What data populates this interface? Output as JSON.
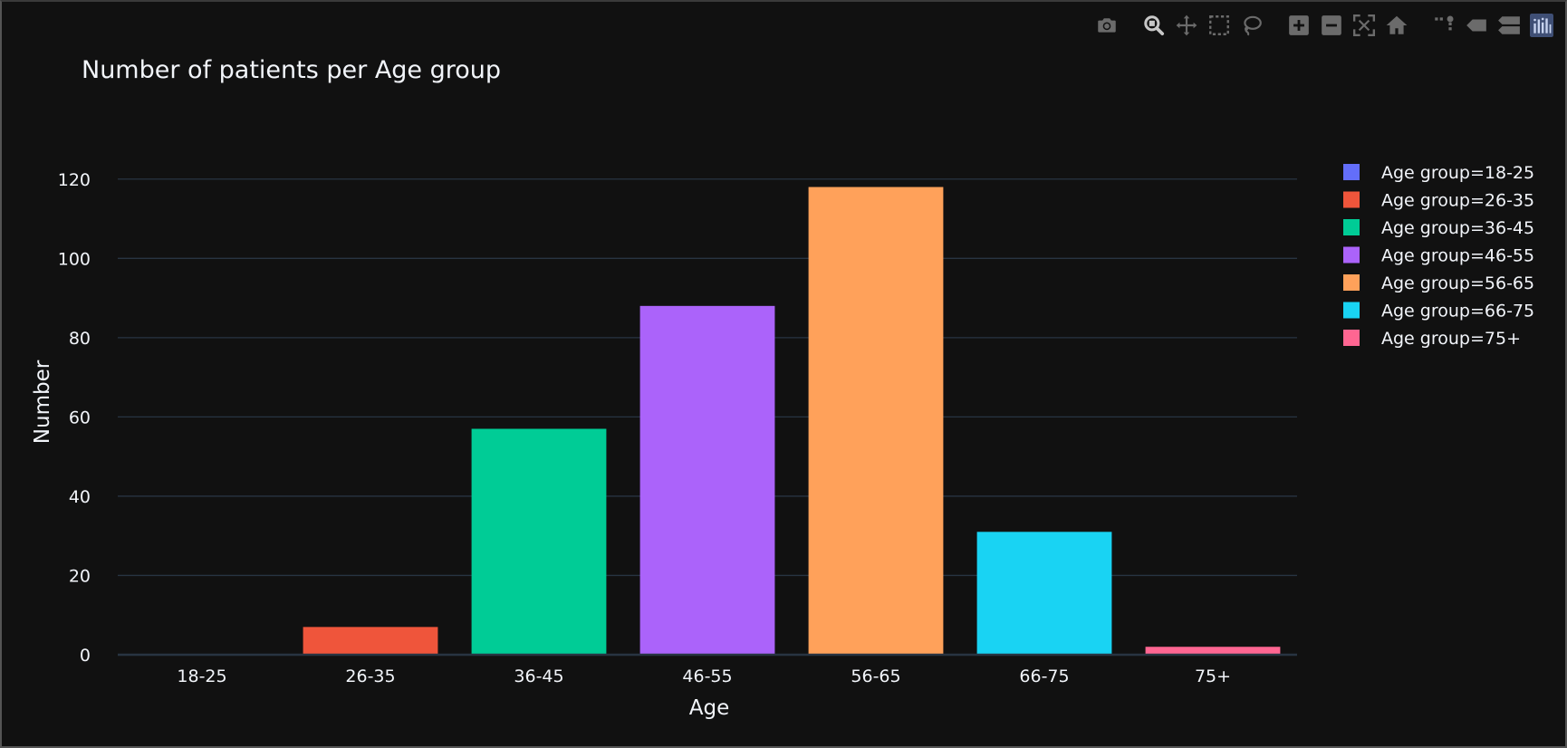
{
  "chart_data": {
    "type": "bar",
    "title": "Number of patients per Age group",
    "xlabel": "Age",
    "ylabel": "Number",
    "categories": [
      "18-25",
      "26-35",
      "36-45",
      "46-55",
      "56-65",
      "66-75",
      "75+"
    ],
    "ylim": [
      0,
      130
    ],
    "yticks": [
      0,
      20,
      40,
      60,
      80,
      100,
      120
    ],
    "grid": true,
    "legend_position": "top-right",
    "series": [
      {
        "name": "Age group=18-25",
        "category": "18-25",
        "value": 0,
        "color": "#636efa"
      },
      {
        "name": "Age group=26-35",
        "category": "26-35",
        "value": 7,
        "color": "#ef553b"
      },
      {
        "name": "Age group=36-45",
        "category": "36-45",
        "value": 57,
        "color": "#00cc96"
      },
      {
        "name": "Age group=46-55",
        "category": "46-55",
        "value": 88,
        "color": "#ab63fa"
      },
      {
        "name": "Age group=56-65",
        "category": "56-65",
        "value": 118,
        "color": "#ffa15a"
      },
      {
        "name": "Age group=66-75",
        "category": "66-75",
        "value": 31,
        "color": "#19d3f3"
      },
      {
        "name": "Age group=75+",
        "category": "75+",
        "value": 2,
        "color": "#ff6692"
      }
    ]
  },
  "modebar": {
    "icons": [
      "camera-icon",
      "zoom-icon",
      "pan-icon",
      "box-select-icon",
      "lasso-select-icon",
      "zoom-in-icon",
      "zoom-out-icon",
      "autoscale-icon",
      "reset-axes-icon",
      "spike-lines-icon",
      "hover-closest-icon",
      "hover-compare-icon",
      "plotly-logo-icon"
    ],
    "icon_color": "#6b6b6b",
    "active_color": "#c8c8c8"
  },
  "theme": {
    "paper_bg": "#111111",
    "grid_color": "#283442",
    "text_color": "#f2f5fa"
  }
}
